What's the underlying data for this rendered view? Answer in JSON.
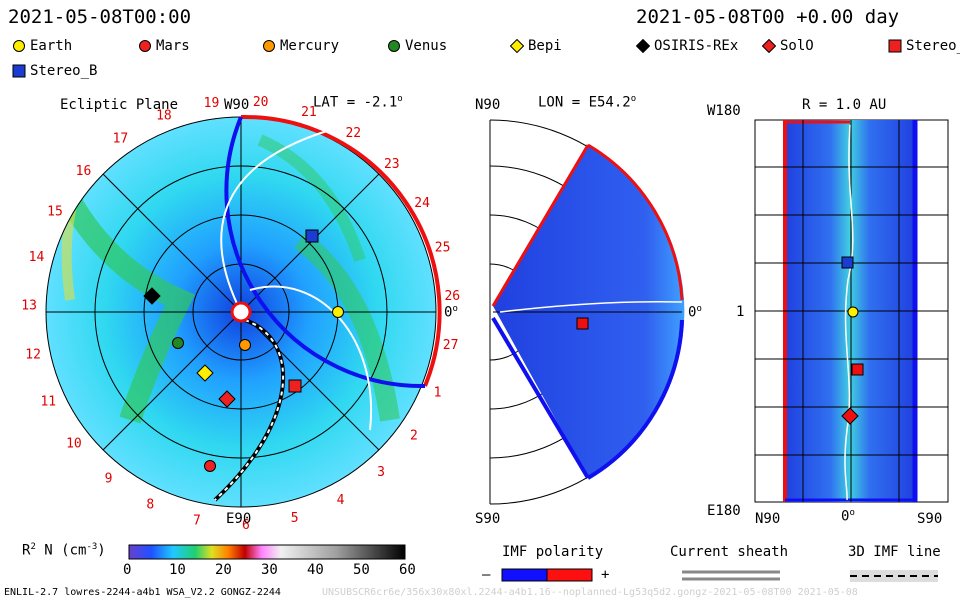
{
  "header": {
    "date_left": "2021-05-08T00:00",
    "date_right": "2021-05-08T00 +0.00 day"
  },
  "legend": [
    {
      "name": "Earth",
      "marker": "circle",
      "color": "#ffee00"
    },
    {
      "name": "Mars",
      "marker": "circle",
      "color": "#ee2020"
    },
    {
      "name": "Mercury",
      "marker": "circle",
      "color": "#ff9900"
    },
    {
      "name": "Venus",
      "marker": "circle",
      "color": "#228822"
    },
    {
      "name": "Bepi",
      "marker": "diamond",
      "color": "#ffee00"
    },
    {
      "name": "OSIRIS-REx",
      "marker": "diamond",
      "color": "#000000"
    },
    {
      "name": "SolO",
      "marker": "diamond",
      "color": "#ee2020"
    },
    {
      "name": "Stereo_",
      "marker": "square",
      "color": "#ee2020"
    },
    {
      "name": "Stereo_B",
      "marker": "square",
      "color": "#1a3cd0"
    }
  ],
  "panels": {
    "ecliptic": {
      "title": "Ecliptic Plane",
      "lat_label": "LAT = -2.1",
      "top_label": "W90",
      "bottom_label": "E90",
      "right_label": "0",
      "carrington_numbers": [
        "19",
        "20",
        "21",
        "22",
        "23",
        "24",
        "25",
        "26",
        "27",
        "1",
        "2",
        "3",
        "4",
        "5",
        "6",
        "7",
        "8",
        "9",
        "10",
        "11",
        "12",
        "13",
        "14",
        "15",
        "16",
        "17",
        "18"
      ]
    },
    "meridional": {
      "top_label": "N90",
      "lon_label": "LON = E54.2",
      "bottom_label": "S90",
      "right_label": "0"
    },
    "radial": {
      "title": "R = 1.0 AU",
      "top_left": "W180",
      "mid_left": "1",
      "bottom_left": "E180",
      "x_labels": [
        "N90",
        "0",
        "S90"
      ]
    }
  },
  "colorbar": {
    "label": "R",
    "label_sup": "2",
    "label_rest": " N (cm",
    "label_exp": "-3",
    "label_end": ")",
    "ticks": [
      "0",
      "10",
      "20",
      "30",
      "40",
      "50",
      "60"
    ]
  },
  "imf": {
    "title": "IMF polarity",
    "minus": "–",
    "plus": "+",
    "neg_color": "#1010ff",
    "pos_color": "#ff1010"
  },
  "sheath": {
    "title": "Current sheath"
  },
  "imf3d": {
    "title": "3D IMF line"
  },
  "footer": {
    "left": "ENLIL-2.7 lowres-2244-a4b1 WSA_V2.2 GONGZ-2244",
    "right": "UNSUBSCR6cr6e/356x30x80xl.2244-a4b1.16--noplanned-Lg53q5d2.gongz-2021-05-08T00     2021-05-08"
  },
  "chart_data": [
    {
      "type": "heatmap",
      "title": "Ecliptic Plane",
      "quantity": "R^2 N (cm^-3)",
      "range": [
        0,
        60
      ],
      "bodies": [
        {
          "name": "Earth",
          "position": "0 deg, 1 AU"
        },
        {
          "name": "Stereo_B"
        },
        {
          "name": "OSIRIS-REx"
        },
        {
          "name": "Venus"
        },
        {
          "name": "Mercury"
        },
        {
          "name": "Bepi"
        },
        {
          "name": "SolO"
        },
        {
          "name": "Stereo_"
        },
        {
          "name": "Mars"
        }
      ]
    },
    {
      "type": "heatmap",
      "title": "LON = E54.2",
      "quantity": "R^2 N (cm^-3)"
    },
    {
      "type": "heatmap",
      "title": "R = 1.0 AU",
      "quantity": "R^2 N (cm^-3)"
    }
  ]
}
